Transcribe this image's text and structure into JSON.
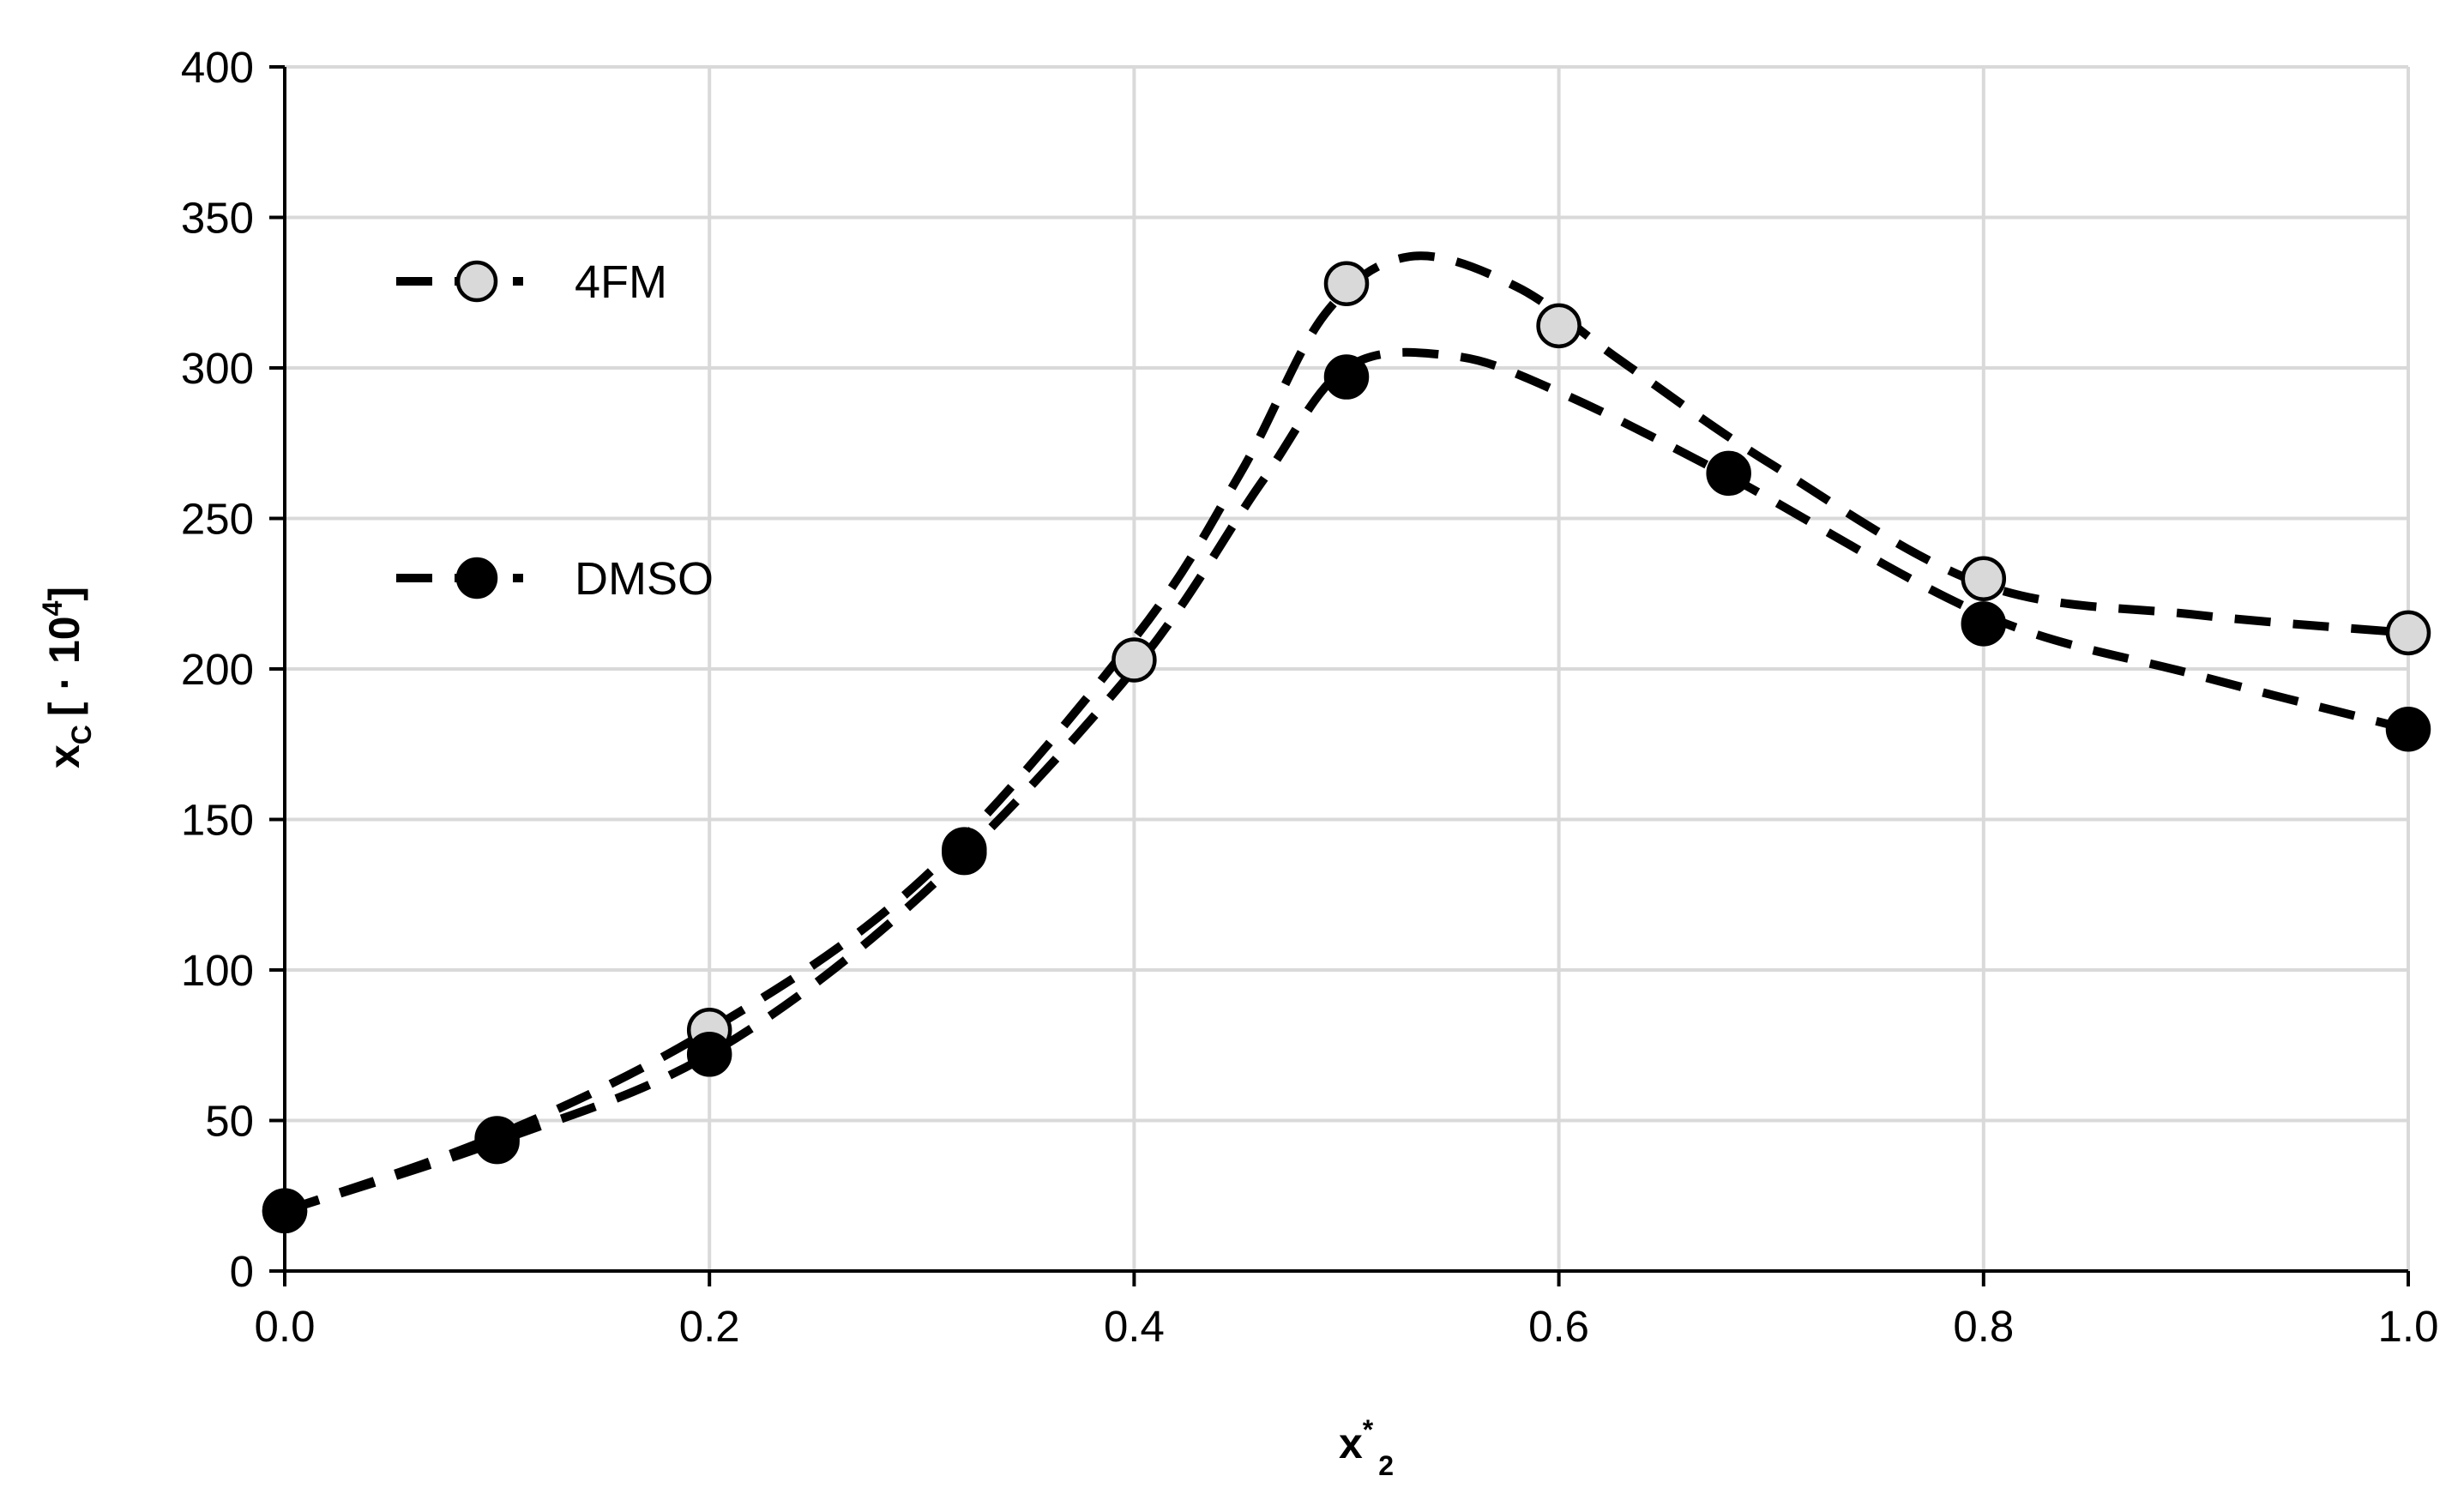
{
  "chart_data": {
    "type": "scatter",
    "xlabel": {
      "main": "x",
      "sup": "*",
      "sub": "2"
    },
    "ylabel": {
      "main": "x",
      "sub": "C",
      "bracket": "[ · 10",
      "sup": "4",
      "close": "]"
    },
    "xlim": [
      0.0,
      1.0
    ],
    "ylim": [
      0,
      400
    ],
    "x_ticks": [
      "0.0",
      "0.2",
      "0.4",
      "0.6",
      "0.8",
      "1.0"
    ],
    "y_ticks": [
      "0",
      "50",
      "100",
      "150",
      "200",
      "250",
      "300",
      "350",
      "400"
    ],
    "grid": true,
    "legend_placement": "top-left",
    "series": [
      {
        "name": "4FM",
        "marker_color": "#d9d9d9",
        "points": [
          {
            "x": 0.0,
            "y": 20
          },
          {
            "x": 0.1,
            "y": 44
          },
          {
            "x": 0.2,
            "y": 80
          },
          {
            "x": 0.32,
            "y": 140
          },
          {
            "x": 0.4,
            "y": 203
          },
          {
            "x": 0.5,
            "y": 328
          },
          {
            "x": 0.6,
            "y": 314
          },
          {
            "x": 0.8,
            "y": 230
          },
          {
            "x": 1.0,
            "y": 212
          }
        ],
        "curve": [
          {
            "x": 0.0,
            "y": 20
          },
          {
            "x": 0.1,
            "y": 45
          },
          {
            "x": 0.2,
            "y": 80
          },
          {
            "x": 0.3,
            "y": 130
          },
          {
            "x": 0.4,
            "y": 210
          },
          {
            "x": 0.45,
            "y": 265
          },
          {
            "x": 0.49,
            "y": 318
          },
          {
            "x": 0.53,
            "y": 337
          },
          {
            "x": 0.58,
            "y": 327
          },
          {
            "x": 0.63,
            "y": 302
          },
          {
            "x": 0.7,
            "y": 268
          },
          {
            "x": 0.8,
            "y": 228
          },
          {
            "x": 0.9,
            "y": 218
          },
          {
            "x": 1.0,
            "y": 212
          }
        ]
      },
      {
        "name": "DMSO",
        "marker_color": "#000000",
        "points": [
          {
            "x": 0.0,
            "y": 20
          },
          {
            "x": 0.1,
            "y": 43
          },
          {
            "x": 0.2,
            "y": 72
          },
          {
            "x": 0.32,
            "y": 139
          },
          {
            "x": 0.5,
            "y": 297
          },
          {
            "x": 0.68,
            "y": 265
          },
          {
            "x": 0.8,
            "y": 215
          },
          {
            "x": 1.0,
            "y": 180
          }
        ],
        "curve": [
          {
            "x": 0.0,
            "y": 20
          },
          {
            "x": 0.1,
            "y": 43
          },
          {
            "x": 0.2,
            "y": 72
          },
          {
            "x": 0.3,
            "y": 125
          },
          {
            "x": 0.4,
            "y": 200
          },
          {
            "x": 0.46,
            "y": 262
          },
          {
            "x": 0.5,
            "y": 300
          },
          {
            "x": 0.55,
            "y": 304
          },
          {
            "x": 0.6,
            "y": 292
          },
          {
            "x": 0.68,
            "y": 264
          },
          {
            "x": 0.8,
            "y": 218
          },
          {
            "x": 0.9,
            "y": 198
          },
          {
            "x": 1.0,
            "y": 180
          }
        ]
      }
    ]
  }
}
